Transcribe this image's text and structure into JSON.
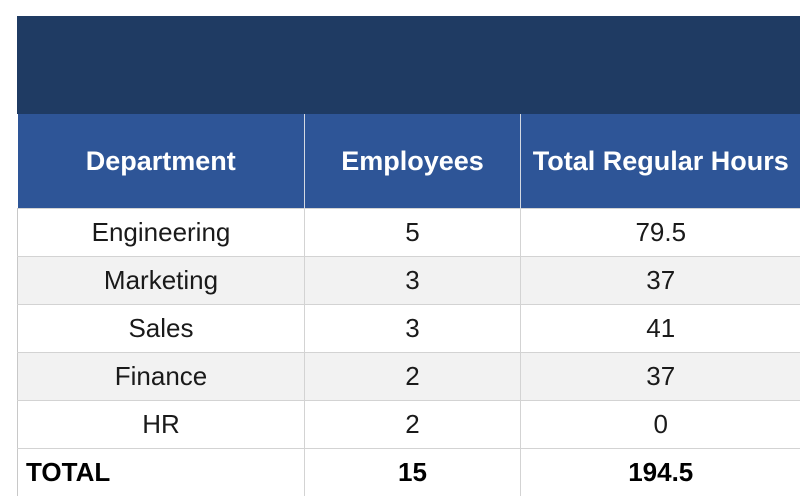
{
  "headers": [
    "Department",
    "Employees",
    "Total Regular Hours"
  ],
  "rows": [
    {
      "department": "Engineering",
      "employees": "5",
      "hours": "79.5"
    },
    {
      "department": "Marketing",
      "employees": "3",
      "hours": "37"
    },
    {
      "department": "Sales",
      "employees": "3",
      "hours": "41"
    },
    {
      "department": "Finance",
      "employees": "2",
      "hours": "37"
    },
    {
      "department": "HR",
      "employees": "2",
      "hours": "0"
    }
  ],
  "total": {
    "label": "TOTAL",
    "employees": "15",
    "hours": "194.5"
  },
  "colors": {
    "title_band": "#1f3b63",
    "header_fill": "#2e5597",
    "header_text": "#ffffff",
    "row_stripe": "#f2f2f2"
  }
}
